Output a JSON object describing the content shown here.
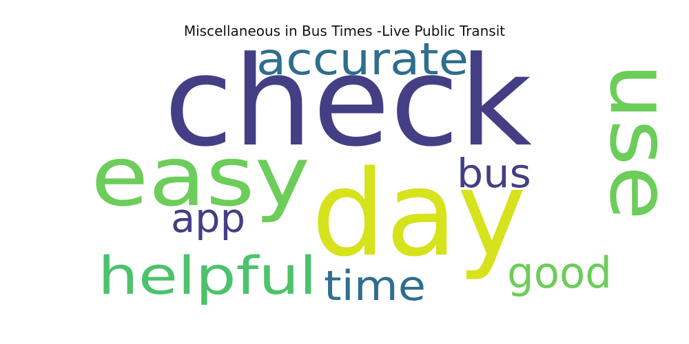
{
  "title": "Miscellaneous in Bus Times -Live Public Transit",
  "words": [
    {
      "text": "check",
      "color": "#443f85"
    },
    {
      "text": "day",
      "color": "#d6e21c"
    },
    {
      "text": "easy",
      "color": "#6ccd5a"
    },
    {
      "text": "use",
      "color": "#6ccd5a"
    },
    {
      "text": "accurate",
      "color": "#2e6e8e"
    },
    {
      "text": "helpful",
      "color": "#4cc26c"
    },
    {
      "text": "bus",
      "color": "#433e85"
    },
    {
      "text": "app",
      "color": "#433e85"
    },
    {
      "text": "time",
      "color": "#2e6e8e"
    },
    {
      "text": "good",
      "color": "#6ccd5a"
    }
  ]
}
